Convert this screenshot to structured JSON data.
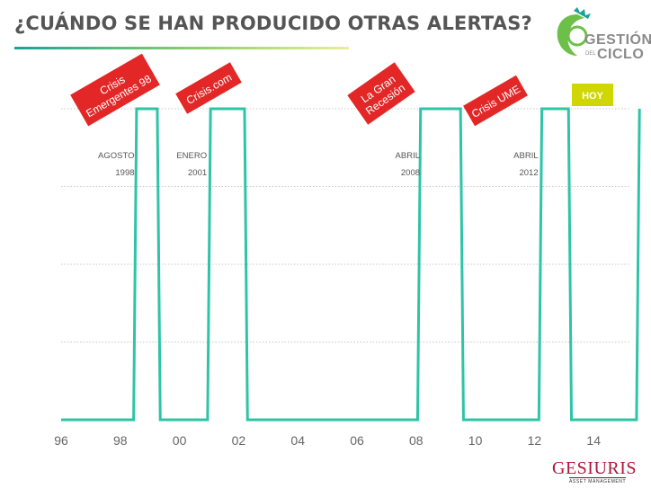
{
  "header": {
    "title": "¿CUÁNDO SE HAN PRODUCIDO OTRAS ALERTAS?"
  },
  "logo": {
    "line1": "GESTIÓN",
    "small": "DEL",
    "line2": "CICLO",
    "accent_color": "#6cc04a"
  },
  "brand": {
    "name": "GESIURIS",
    "subtitle": "ASSET MANAGEMENT",
    "color": "#b0163a"
  },
  "chart_data": {
    "type": "line",
    "title": "",
    "xlabel": "",
    "ylabel": "",
    "xlim": [
      1996,
      2016
    ],
    "ylim": [
      0,
      1.3
    ],
    "grid": true,
    "line_color": "#2ec4a6",
    "x_ticks": [
      "96",
      "98",
      "00",
      "02",
      "04",
      "06",
      "08",
      "10",
      "12",
      "14"
    ],
    "x_tick_values": [
      1996,
      1998,
      2000,
      2002,
      2004,
      2006,
      2008,
      2010,
      2012,
      2014
    ],
    "series": [
      {
        "x": [
          1996,
          1998.45,
          1998.55,
          1999.25,
          1999.35,
          2000.95,
          2001.05,
          2002.2,
          2002.3,
          2008.05,
          2008.15,
          2009.5,
          2009.6,
          2012.15,
          2012.25,
          2013.15,
          2013.25,
          2015.45,
          2015.55
        ],
        "values": [
          0,
          0,
          1,
          1,
          0,
          0,
          1,
          1,
          0,
          0,
          1,
          1,
          0,
          0,
          1,
          1,
          0,
          0,
          1
        ]
      }
    ],
    "annotations": [
      {
        "label_lines": [
          "Crisis",
          "Emergentes 98"
        ],
        "month": "AGOSTO",
        "year": "1998",
        "x": 1998.6
      },
      {
        "label_lines": [
          "Crisis.com"
        ],
        "month": "ENERO",
        "year": "2001",
        "x": 2001.05
      },
      {
        "label_lines": [
          "La Gran",
          "Recesión"
        ],
        "month": "ABRIL",
        "year": "2008",
        "x": 2008.25
      },
      {
        "label_lines": [
          "Crisis UME"
        ],
        "month": "ABRIL",
        "year": "2012",
        "x": 2012.25
      }
    ],
    "today_label": "HOY",
    "today_color": "#cfd600",
    "label_color": "#e32727"
  }
}
